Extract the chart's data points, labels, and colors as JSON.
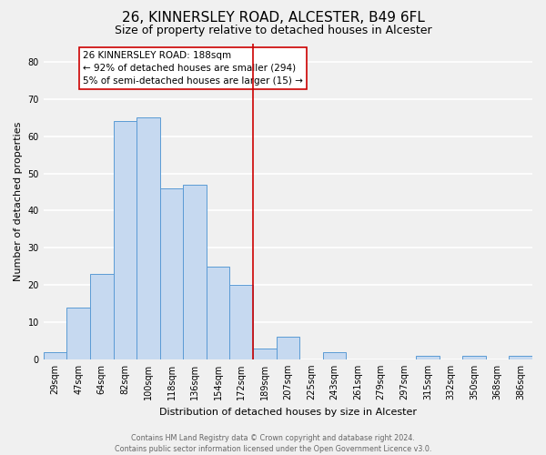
{
  "title": "26, KINNERSLEY ROAD, ALCESTER, B49 6FL",
  "subtitle": "Size of property relative to detached houses in Alcester",
  "xlabel": "Distribution of detached houses by size in Alcester",
  "ylabel": "Number of detached properties",
  "bar_labels": [
    "29sqm",
    "47sqm",
    "64sqm",
    "82sqm",
    "100sqm",
    "118sqm",
    "136sqm",
    "154sqm",
    "172sqm",
    "189sqm",
    "207sqm",
    "225sqm",
    "243sqm",
    "261sqm",
    "279sqm",
    "297sqm",
    "315sqm",
    "332sqm",
    "350sqm",
    "368sqm",
    "386sqm"
  ],
  "bar_values": [
    2,
    14,
    23,
    64,
    65,
    46,
    47,
    25,
    20,
    3,
    6,
    0,
    2,
    0,
    0,
    0,
    1,
    0,
    1,
    0,
    1
  ],
  "bar_color": "#c6d9f0",
  "bar_edge_color": "#5b9bd5",
  "vline_x": 8.5,
  "vline_color": "#cc0000",
  "annotation_title": "26 KINNERSLEY ROAD: 188sqm",
  "annotation_line1": "← 92% of detached houses are smaller (294)",
  "annotation_line2": "5% of semi-detached houses are larger (15) →",
  "annotation_box_color": "#ffffff",
  "annotation_box_edge_color": "#cc0000",
  "footer_line1": "Contains HM Land Registry data © Crown copyright and database right 2024.",
  "footer_line2": "Contains public sector information licensed under the Open Government Licence v3.0.",
  "ylim": [
    0,
    85
  ],
  "background_color": "#f0f0f0",
  "grid_color": "#ffffff",
  "title_fontsize": 11,
  "subtitle_fontsize": 9,
  "axis_label_fontsize": 8,
  "tick_fontsize": 7,
  "annotation_fontsize": 7.5,
  "footer_fontsize": 5.8
}
